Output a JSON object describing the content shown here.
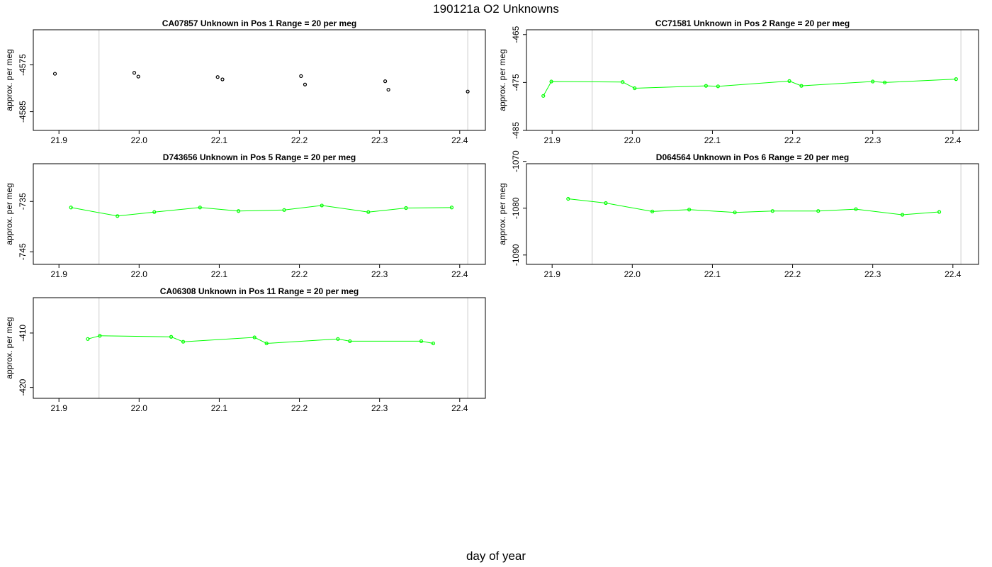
{
  "title": "190121a  O2 Unknowns",
  "xlabel": "day of year",
  "colors": {
    "line": "#00ff00",
    "point_dark": "#000000",
    "marker_line": "#cccccc"
  },
  "chart_data": [
    {
      "type": "scatter",
      "panel_title": "CA07857    Unknown in Pos 1         Range = 20 per meg",
      "ylabel": "approx. per meg",
      "xlim": [
        21.868,
        22.432
      ],
      "ylim": [
        -4589.0,
        -4567.5
      ],
      "xticks": [
        21.9,
        22.0,
        22.1,
        22.2,
        22.3,
        22.4
      ],
      "xtick_labels": [
        "21.9",
        "22.0",
        "22.1",
        "22.2",
        "22.3",
        "22.4"
      ],
      "yticks": [
        -4575,
        -4585
      ],
      "ytick_labels": [
        "-4575",
        "-4585"
      ],
      "vlines": [
        21.95,
        22.41
      ],
      "connected": false,
      "point_color": "#000000",
      "x": [
        21.895,
        21.994,
        21.999,
        22.098,
        22.104,
        22.202,
        22.207,
        22.307,
        22.311,
        22.41
      ],
      "y": [
        -4576.9,
        -4576.7,
        -4577.5,
        -4577.6,
        -4578.1,
        -4577.4,
        -4579.2,
        -4578.5,
        -4580.3,
        -4580.7
      ]
    },
    {
      "type": "line",
      "panel_title": "CC71581    Unknown in Pos 2         Range = 20 per meg",
      "ylabel": "approx. per meg",
      "xlim": [
        21.868,
        22.432
      ],
      "ylim": [
        -485.0,
        -464.0
      ],
      "xticks": [
        21.9,
        22.0,
        22.1,
        22.2,
        22.3,
        22.4
      ],
      "xtick_labels": [
        "21.9",
        "22.0",
        "22.1",
        "22.2",
        "22.3",
        "22.4"
      ],
      "yticks": [
        -465,
        -475,
        -485
      ],
      "ytick_labels": [
        "-465",
        "-475",
        "-485"
      ],
      "vlines": [
        21.95,
        22.41
      ],
      "connected": true,
      "point_color": "#00ff00",
      "x": [
        21.889,
        21.899,
        21.988,
        22.003,
        22.092,
        22.107,
        22.196,
        22.211,
        22.3,
        22.315,
        22.404
      ],
      "y": [
        -477.8,
        -474.8,
        -474.9,
        -476.2,
        -475.7,
        -475.8,
        -474.7,
        -475.7,
        -474.8,
        -475.0,
        -474.3
      ]
    },
    {
      "type": "line",
      "panel_title": "D743656    Unknown in Pos 5         Range = 20 per meg",
      "ylabel": "approx. per meg",
      "xlim": [
        21.868,
        22.432
      ],
      "ylim": [
        -747.5,
        -727.5
      ],
      "xticks": [
        21.9,
        22.0,
        22.1,
        22.2,
        22.3,
        22.4
      ],
      "xtick_labels": [
        "21.9",
        "22.0",
        "22.1",
        "22.2",
        "22.3",
        "22.4"
      ],
      "yticks": [
        -735,
        -745
      ],
      "ytick_labels": [
        "-735",
        "-745"
      ],
      "vlines": [
        21.95,
        22.41
      ],
      "connected": true,
      "point_color": "#00ff00",
      "x": [
        21.915,
        21.973,
        22.019,
        22.076,
        22.124,
        22.181,
        22.228,
        22.286,
        22.333,
        22.39
      ],
      "y": [
        -736.2,
        -737.9,
        -737.1,
        -736.2,
        -736.9,
        -736.7,
        -735.8,
        -737.1,
        -736.3,
        -736.2
      ]
    },
    {
      "type": "line",
      "panel_title": "D064564    Unknown in Pos 6         Range = 20 per meg",
      "ylabel": "approx. per meg",
      "xlim": [
        21.868,
        22.432
      ],
      "ylim": [
        -1092.0,
        -1070.5
      ],
      "xticks": [
        21.9,
        22.0,
        22.1,
        22.2,
        22.3,
        22.4
      ],
      "xtick_labels": [
        "21.9",
        "22.0",
        "22.1",
        "22.2",
        "22.3",
        "22.4"
      ],
      "yticks": [
        -1070,
        -1080,
        -1090
      ],
      "ytick_labels": [
        "-1070",
        "-1080",
        "-1090"
      ],
      "vlines": [
        21.95,
        22.41
      ],
      "connected": true,
      "point_color": "#00ff00",
      "x": [
        21.92,
        21.967,
        22.025,
        22.071,
        22.128,
        22.175,
        22.232,
        22.279,
        22.337,
        22.383
      ],
      "y": [
        -1078.0,
        -1078.9,
        -1080.7,
        -1080.3,
        -1080.9,
        -1080.6,
        -1080.6,
        -1080.2,
        -1081.4,
        -1080.8
      ]
    },
    {
      "type": "line",
      "panel_title": "CA06308    Unknown in Pos 11         Range = 20 per meg",
      "ylabel": "approx. per meg",
      "xlim": [
        21.868,
        22.432
      ],
      "ylim": [
        -422.0,
        -403.5
      ],
      "xticks": [
        21.9,
        22.0,
        22.1,
        22.2,
        22.3,
        22.4
      ],
      "xtick_labels": [
        "21.9",
        "22.0",
        "22.1",
        "22.2",
        "22.3",
        "22.4"
      ],
      "yticks": [
        -410,
        -420
      ],
      "ytick_labels": [
        "-410",
        "-420"
      ],
      "vlines": [
        21.95,
        22.41
      ],
      "connected": true,
      "point_color": "#00ff00",
      "x": [
        21.936,
        21.951,
        22.04,
        22.055,
        22.144,
        22.159,
        22.248,
        22.263,
        22.352,
        22.367
      ],
      "y": [
        -411.1,
        -410.5,
        -410.7,
        -411.6,
        -410.8,
        -411.9,
        -411.1,
        -411.5,
        -411.5,
        -411.9
      ]
    }
  ]
}
